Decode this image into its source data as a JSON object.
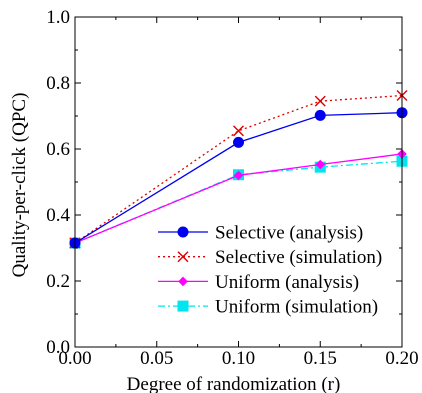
{
  "chart_data": {
    "type": "line",
    "xlabel": "Degree of randomization (r)",
    "ylabel": "Quality-per-click (QPC)",
    "xlim": [
      0.0,
      0.2
    ],
    "ylim": [
      0.0,
      1.0
    ],
    "x_ticks": [
      "0.00",
      "0.05",
      "0.10",
      "0.15",
      "0.20"
    ],
    "y_ticks": [
      "0.0",
      "0.2",
      "0.4",
      "0.6",
      "0.8",
      "1.0"
    ],
    "grid": false,
    "legend_position": "bottom-right",
    "series": [
      {
        "name": "Selective (analysis)",
        "x": [
          0.0,
          0.1,
          0.15,
          0.2
        ],
        "y": [
          0.315,
          0.62,
          0.702,
          0.71
        ],
        "color": "#0000ee",
        "line": "solid",
        "marker": "circle"
      },
      {
        "name": "Selective (simulation)",
        "x": [
          0.0,
          0.1,
          0.15,
          0.2
        ],
        "y": [
          0.315,
          0.655,
          0.745,
          0.762
        ],
        "color": "#dd0000",
        "line": "dotted",
        "marker": "x"
      },
      {
        "name": "Uniform (analysis)",
        "x": [
          0.0,
          0.1,
          0.15,
          0.2
        ],
        "y": [
          0.315,
          0.52,
          0.553,
          0.585
        ],
        "color": "#ff00ff",
        "line": "solid",
        "marker": "diamond"
      },
      {
        "name": "Uniform (simulation)",
        "x": [
          0.0,
          0.1,
          0.15,
          0.2
        ],
        "y": [
          0.315,
          0.522,
          0.545,
          0.563
        ],
        "color": "#00e5ee",
        "line": "dashdot",
        "marker": "square"
      }
    ]
  }
}
